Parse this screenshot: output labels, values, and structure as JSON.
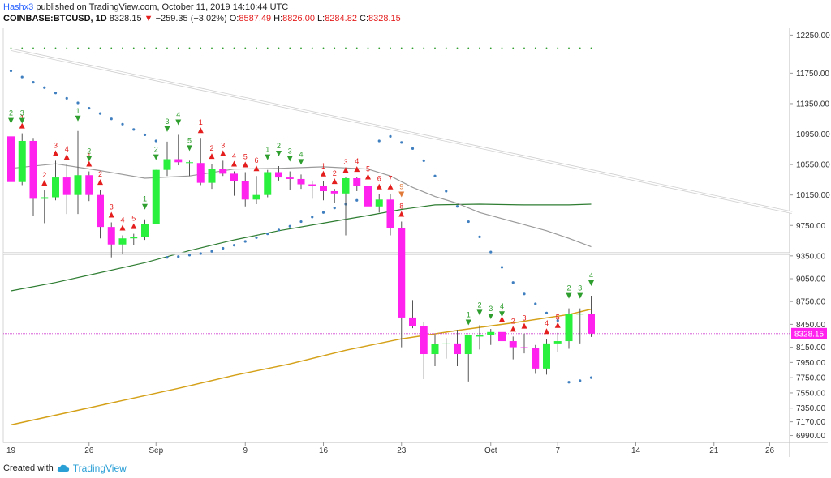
{
  "header": {
    "user": "Hashx3",
    "published": " published on TradingView.com, October 11, 2019 14:10:44 UTC",
    "symbol": "COINBASE:BTCUSD, 1D",
    "last": "8328.15",
    "change": "−259.35 (−3.02%)",
    "open_label": "O:",
    "open": "8587.49",
    "high_label": "H:",
    "high": "8826.00",
    "low_label": "L:",
    "low": "8284.82",
    "close_label": "C:",
    "close": "8328.15"
  },
  "footer": {
    "created": "Created with",
    "brand": "TradingView"
  },
  "colors": {
    "up": "#28f03c",
    "down": "#ff22ee",
    "wick": "#555555",
    "ma_gray": "#9a9a9a",
    "ma_green": "#2e7d32",
    "ma_orange": "#d4a017",
    "trend": "#ffffff",
    "sar": "#3f7fc0",
    "td_red": "#e41d1d",
    "td_green": "#2e9e2e",
    "price_label_bg": "#ff22ee",
    "price_line": "#d040d0"
  },
  "chart_data": {
    "type": "candlestick",
    "symbol": "COINBASE:BTCUSD",
    "interval": "1D",
    "ylim": [
      6900,
      12350
    ],
    "y_ticks": [
      12250,
      11750,
      11350,
      10950,
      10550,
      10150,
      9750,
      9350,
      9050,
      8750,
      8450,
      8150,
      7950,
      7750,
      7550,
      7350,
      7170,
      6990
    ],
    "y_tick_labels": [
      "12250.00",
      "11750.00",
      "11350.00",
      "10950.00",
      "10550.00",
      "10150.00",
      "9750.00",
      "9350.00",
      "9050.00",
      "8750.00",
      "8450.00",
      "8150.00",
      "7950.00",
      "7750.00",
      "7550.00",
      "7350.00",
      "7170.00",
      "6990.00"
    ],
    "x_ticks": [
      {
        "label": "19",
        "i": 0
      },
      {
        "label": "26",
        "i": 7
      },
      {
        "label": "Sep",
        "i": 13
      },
      {
        "label": "9",
        "i": 21
      },
      {
        "label": "16",
        "i": 28
      },
      {
        "label": "23",
        "i": 35
      },
      {
        "label": "Oct",
        "i": 43
      },
      {
        "label": "7",
        "i": 49
      },
      {
        "label": "14",
        "i": 56
      },
      {
        "label": "21",
        "i": 63
      },
      {
        "label": "26",
        "i": 68
      }
    ],
    "current_price": 8328.15,
    "current_price_label": "8328.15",
    "candles": [
      [
        10920,
        10960,
        10300,
        10320
      ],
      [
        10320,
        10960,
        10280,
        10860
      ],
      [
        10860,
        10900,
        9880,
        10100
      ],
      [
        10100,
        10210,
        9780,
        10120
      ],
      [
        10120,
        10600,
        10080,
        10380
      ],
      [
        10380,
        10550,
        9900,
        10150
      ],
      [
        10150,
        10990,
        9900,
        10410
      ],
      [
        10410,
        10460,
        10070,
        10150
      ],
      [
        10150,
        10220,
        9580,
        9730
      ],
      [
        9730,
        9790,
        9330,
        9500
      ],
      [
        9500,
        9620,
        9380,
        9580
      ],
      [
        9580,
        9640,
        9490,
        9600
      ],
      [
        9600,
        9830,
        9560,
        9770
      ],
      [
        9770,
        10480,
        9770,
        10480
      ],
      [
        10480,
        10850,
        10400,
        10620
      ],
      [
        10620,
        10940,
        10540,
        10580
      ],
      [
        10580,
        10600,
        10400,
        10580
      ],
      [
        10570,
        10900,
        10280,
        10310
      ],
      [
        10310,
        10560,
        10230,
        10490
      ],
      [
        10490,
        10600,
        10400,
        10430
      ],
      [
        10430,
        10460,
        10140,
        10330
      ],
      [
        10330,
        10450,
        10000,
        10090
      ],
      [
        10090,
        10400,
        10030,
        10150
      ],
      [
        10150,
        10480,
        10120,
        10450
      ],
      [
        10450,
        10530,
        10340,
        10380
      ],
      [
        10380,
        10460,
        10220,
        10360
      ],
      [
        10360,
        10420,
        10230,
        10290
      ],
      [
        10290,
        10340,
        10100,
        10270
      ],
      [
        10270,
        10330,
        10080,
        10200
      ],
      [
        10200,
        10230,
        10050,
        10170
      ],
      [
        10170,
        10380,
        9620,
        10370
      ],
      [
        10370,
        10390,
        10200,
        10270
      ],
      [
        10270,
        10290,
        9950,
        10000
      ],
      [
        10000,
        10160,
        9920,
        10090
      ],
      [
        10090,
        10160,
        9620,
        9720
      ],
      [
        9720,
        9800,
        8150,
        8540
      ],
      [
        8540,
        8770,
        8400,
        8430
      ],
      [
        8430,
        8480,
        7730,
        8060
      ],
      [
        8060,
        8320,
        7900,
        8190
      ],
      [
        8190,
        8270,
        8000,
        8200
      ],
      [
        8200,
        8380,
        7900,
        8060
      ],
      [
        8060,
        8310,
        7700,
        8310
      ],
      [
        8290,
        8440,
        8120,
        8310
      ],
      [
        8310,
        8390,
        8180,
        8350
      ],
      [
        8350,
        8420,
        8000,
        8230
      ],
      [
        8230,
        8290,
        7990,
        8150
      ],
      [
        8150,
        8330,
        8070,
        8140
      ],
      [
        8140,
        8180,
        7800,
        7870
      ],
      [
        7870,
        8260,
        7790,
        8200
      ],
      [
        8200,
        8340,
        8090,
        8230
      ],
      [
        8230,
        8660,
        8130,
        8590
      ],
      [
        8590,
        8660,
        8200,
        8590
      ],
      [
        8587.49,
        8826,
        8284.82,
        8328.15
      ]
    ],
    "sar_dots": [
      [
        0,
        11780
      ],
      [
        1,
        11700
      ],
      [
        2,
        11630
      ],
      [
        3,
        11560
      ],
      [
        4,
        11490
      ],
      [
        5,
        11420
      ],
      [
        6,
        11360
      ],
      [
        7,
        11290
      ],
      [
        8,
        11220
      ],
      [
        9,
        11150
      ],
      [
        10,
        11080
      ],
      [
        11,
        11010
      ],
      [
        12,
        10940
      ],
      [
        13,
        10860
      ],
      [
        14,
        9330
      ],
      [
        15,
        9340
      ],
      [
        16,
        9360
      ],
      [
        17,
        9380
      ],
      [
        18,
        9410
      ],
      [
        19,
        9450
      ],
      [
        20,
        9490
      ],
      [
        21,
        9540
      ],
      [
        22,
        9590
      ],
      [
        23,
        9640
      ],
      [
        24,
        9690
      ],
      [
        25,
        9740
      ],
      [
        26,
        9800
      ],
      [
        27,
        9860
      ],
      [
        28,
        9920
      ],
      [
        29,
        9980
      ],
      [
        30,
        10030
      ],
      [
        31,
        10080
      ],
      [
        32,
        10130
      ],
      [
        33,
        10860
      ],
      [
        34,
        10920
      ],
      [
        35,
        10840
      ],
      [
        36,
        10760
      ],
      [
        37,
        10600
      ],
      [
        38,
        10400
      ],
      [
        39,
        10200
      ],
      [
        40,
        10000
      ],
      [
        41,
        9800
      ],
      [
        42,
        9600
      ],
      [
        43,
        9400
      ],
      [
        44,
        9200
      ],
      [
        45,
        9000
      ],
      [
        46,
        8850
      ],
      [
        47,
        8720
      ],
      [
        48,
        8600
      ],
      [
        49,
        8500
      ],
      [
        50,
        7690
      ],
      [
        51,
        7710
      ],
      [
        52,
        7750
      ]
    ],
    "top_dots_price": 12080,
    "annotations_down_red": [
      {
        "i": 1,
        "t": "1"
      },
      {
        "i": 3,
        "t": "2"
      },
      {
        "i": 4,
        "t": "3"
      },
      {
        "i": 5,
        "t": "4"
      },
      {
        "i": 7,
        "t": "1"
      },
      {
        "i": 8,
        "t": "2"
      },
      {
        "i": 9,
        "t": "3"
      },
      {
        "i": 10,
        "t": "4"
      },
      {
        "i": 11,
        "t": "5"
      },
      {
        "i": 17,
        "t": "1"
      },
      {
        "i": 18,
        "t": "2"
      },
      {
        "i": 19,
        "t": "3"
      },
      {
        "i": 20,
        "t": "4"
      },
      {
        "i": 21,
        "t": "5"
      },
      {
        "i": 22,
        "t": "6"
      },
      {
        "i": 28,
        "t": "1"
      },
      {
        "i": 29,
        "t": "2"
      },
      {
        "i": 30,
        "t": "3"
      },
      {
        "i": 31,
        "t": "4"
      },
      {
        "i": 32,
        "t": "5"
      },
      {
        "i": 33,
        "t": "6"
      },
      {
        "i": 34,
        "t": "7"
      },
      {
        "i": 35,
        "t": "8"
      },
      {
        "i": 44,
        "t": "1"
      },
      {
        "i": 45,
        "t": "2"
      },
      {
        "i": 46,
        "t": "3"
      },
      {
        "i": 48,
        "t": "4"
      },
      {
        "i": 49,
        "t": "5"
      }
    ],
    "annotations_up_green": [
      {
        "i": 0,
        "t": "2"
      },
      {
        "i": 1,
        "t": "3"
      },
      {
        "i": 6,
        "t": "1"
      },
      {
        "i": 7,
        "t": "2"
      },
      {
        "i": 12,
        "t": "1"
      },
      {
        "i": 13,
        "t": "2"
      },
      {
        "i": 14,
        "t": "3"
      },
      {
        "i": 15,
        "t": "4"
      },
      {
        "i": 16,
        "t": "5"
      },
      {
        "i": 23,
        "t": "1"
      },
      {
        "i": 24,
        "t": "2"
      },
      {
        "i": 25,
        "t": "3"
      },
      {
        "i": 26,
        "t": "4"
      },
      {
        "i": 41,
        "t": "1"
      },
      {
        "i": 42,
        "t": "2"
      },
      {
        "i": 43,
        "t": "3"
      },
      {
        "i": 44,
        "t": "4"
      },
      {
        "i": 50,
        "t": "2"
      },
      {
        "i": 51,
        "t": "3"
      },
      {
        "i": 52,
        "t": "4"
      }
    ],
    "annotation_setup": {
      "i": 35,
      "t": "9"
    },
    "ma_gray": [
      [
        0,
        10500
      ],
      [
        4,
        10560
      ],
      [
        8,
        10470
      ],
      [
        12,
        10370
      ],
      [
        16,
        10400
      ],
      [
        20,
        10490
      ],
      [
        24,
        10500
      ],
      [
        28,
        10520
      ],
      [
        32,
        10490
      ],
      [
        34,
        10400
      ],
      [
        36,
        10250
      ],
      [
        38,
        10130
      ],
      [
        40,
        10040
      ],
      [
        42,
        9920
      ],
      [
        44,
        9840
      ],
      [
        46,
        9760
      ],
      [
        48,
        9680
      ],
      [
        50,
        9580
      ],
      [
        52,
        9470
      ]
    ],
    "ma_green": [
      [
        0,
        8890
      ],
      [
        4,
        9000
      ],
      [
        8,
        9130
      ],
      [
        12,
        9260
      ],
      [
        16,
        9420
      ],
      [
        20,
        9560
      ],
      [
        24,
        9680
      ],
      [
        28,
        9780
      ],
      [
        32,
        9880
      ],
      [
        35,
        9960
      ],
      [
        38,
        10020
      ],
      [
        42,
        10030
      ],
      [
        46,
        10020
      ],
      [
        50,
        10020
      ],
      [
        52,
        10030
      ]
    ],
    "ma_orange": [
      [
        0,
        7130
      ],
      [
        5,
        7290
      ],
      [
        10,
        7450
      ],
      [
        15,
        7610
      ],
      [
        20,
        7780
      ],
      [
        25,
        7930
      ],
      [
        30,
        8110
      ],
      [
        35,
        8260
      ],
      [
        40,
        8370
      ],
      [
        45,
        8470
      ],
      [
        50,
        8580
      ],
      [
        52,
        8650
      ]
    ],
    "trendline_down": [
      [
        0,
        12060
      ],
      [
        70,
        9920
      ]
    ],
    "horizontal_level": 9380
  }
}
